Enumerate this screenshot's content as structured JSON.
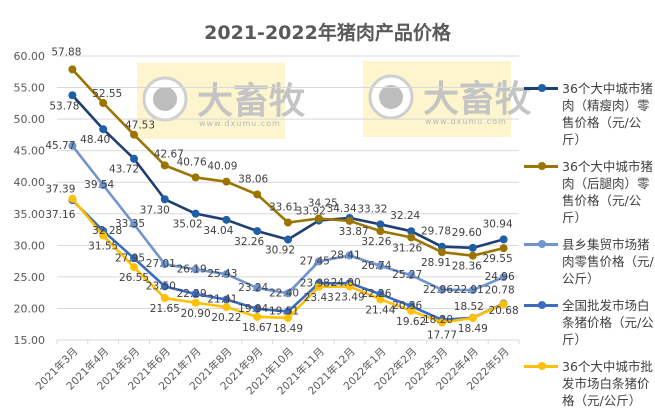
{
  "title": "2021-2022年猪肉产品价格",
  "watermark": {
    "brand": "大畜牧",
    "url": "www.dxumu.com"
  },
  "chart_data": {
    "type": "line",
    "title": "2021-2022年猪肉产品价格",
    "xlabel": "",
    "ylabel": "",
    "ylim": [
      15,
      60
    ],
    "yticks": [
      "15.00",
      "20.00",
      "25.00",
      "30.00",
      "35.00",
      "40.00",
      "45.00",
      "50.00",
      "55.00",
      "60.00"
    ],
    "grid": true,
    "legend_position": "right",
    "categories": [
      "2021年3月",
      "2021年4月",
      "2021年5月",
      "2021年6月",
      "2021年7月",
      "2021年8月",
      "2021年9月",
      "2021年10月",
      "2021年11月",
      "2021年12月",
      "2022年1月",
      "2022年2月",
      "2022年3月",
      "2022年4月",
      "2022年5月"
    ],
    "series": [
      {
        "name": "36个大中城市猪肉（精瘦肉）零售价格（元/公斤）",
        "color": "#1F3F74",
        "values": [
          53.78,
          48.4,
          43.72,
          37.3,
          35.02,
          34.04,
          32.26,
          30.92,
          33.92,
          34.34,
          33.32,
          32.24,
          29.78,
          29.6,
          30.94
        ]
      },
      {
        "name": "36个大中城市猪肉（后腿肉）零售价格（元/公斤）",
        "color": "#9C7400",
        "values": [
          57.88,
          52.55,
          47.53,
          42.67,
          40.76,
          40.09,
          38.06,
          33.61,
          34.25,
          33.87,
          32.26,
          31.26,
          28.91,
          28.36,
          29.55
        ]
      },
      {
        "name": "县乡集贸市场猪肉零售价格（元/公斤）",
        "color": "#6F94D0",
        "values": [
          45.77,
          39.54,
          33.35,
          27.01,
          26.19,
          25.43,
          23.24,
          22.4,
          27.45,
          28.41,
          26.74,
          25.27,
          22.96,
          22.91,
          24.96
        ]
      },
      {
        "name": "全国批发市场白条猪价格（元/公斤）",
        "color": "#3A6CC0",
        "values": [
          37.16,
          32.28,
          27.95,
          23.5,
          22.29,
          21.41,
          19.94,
          19.51,
          23.98,
          24.0,
          22.26,
          20.36,
          18.2,
          18.52,
          20.78
        ]
      },
      {
        "name": "36个大中城市批发市场白条猪价格（元/公斤）",
        "color": "#FFC000",
        "values": [
          37.39,
          31.55,
          26.55,
          21.65,
          20.9,
          20.22,
          18.67,
          18.49,
          23.43,
          23.49,
          21.44,
          19.62,
          17.77,
          18.49,
          20.68
        ]
      }
    ]
  },
  "legend": [
    {
      "label": "36个大中城市猪肉（精瘦肉）零售价格（元/公斤）",
      "color": "#1F3F74",
      "dot": "#1F5FA8"
    },
    {
      "label": "36个大中城市猪肉（后腿肉）零售价格（元/公斤）",
      "color": "#9C7400",
      "dot": "#9C7400"
    },
    {
      "label": "县乡集贸市场猪肉零售价格（元/公斤）",
      "color": "#6F94D0",
      "dot": "#6F94D0"
    },
    {
      "label": "全国批发市场白条猪价格（元/公斤）",
      "color": "#3A6CC0",
      "dot": "#3A6CC0"
    },
    {
      "label": "36个大中城市批发市场白条猪价格（元/公斤）",
      "color": "#FFC000",
      "dot": "#FFC000"
    }
  ]
}
